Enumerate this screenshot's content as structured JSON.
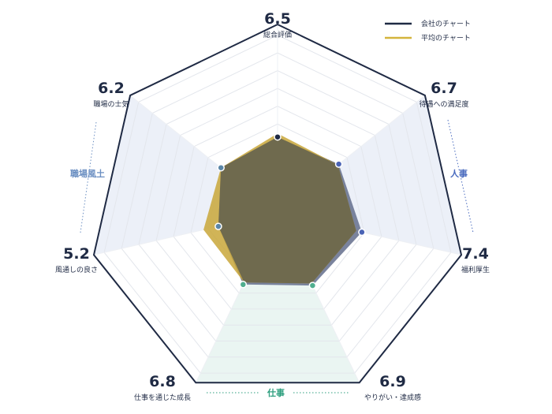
{
  "chart_data": {
    "type": "radar",
    "axes": [
      {
        "label": "総合評価",
        "value": "6.5"
      },
      {
        "label": "待遇への満足度",
        "value": "6.7"
      },
      {
        "label": "福利厚生",
        "value": "7.4"
      },
      {
        "label": "やりがい・達成感",
        "value": "6.9"
      },
      {
        "label": "仕事を通じた成長",
        "value": "6.8"
      },
      {
        "label": "風通しの良さ",
        "value": "5.2"
      },
      {
        "label": "職場の士気",
        "value": "6.2"
      }
    ],
    "series": [
      {
        "name": "会社のチャート",
        "values": [
          6.5,
          6.7,
          7.4,
          6.9,
          6.8,
          5.2,
          6.2
        ]
      },
      {
        "name": "平均のチャート",
        "values": [
          6.8,
          6.6,
          6.9,
          6.7,
          6.6,
          6.5,
          6.2
        ]
      }
    ],
    "groups": [
      {
        "label": "人事",
        "color": "#4a6bbf"
      },
      {
        "label": "仕事",
        "color": "#2f9f7f"
      },
      {
        "label": "職場風土",
        "color": "#6b8fc2"
      }
    ],
    "range": [
      0,
      10
    ],
    "colors": {
      "company_line": "#1f2a44",
      "average_line": "#d4b43c",
      "company_fill": "#6b7592",
      "average_fill": "#c9a73a",
      "overlap_fill": "#6f6a4e",
      "dot_top": "#1f2a44",
      "dot_hr": "#4a63b5",
      "dot_work": "#4fae8f",
      "dot_culture": "#5a86a8"
    }
  }
}
